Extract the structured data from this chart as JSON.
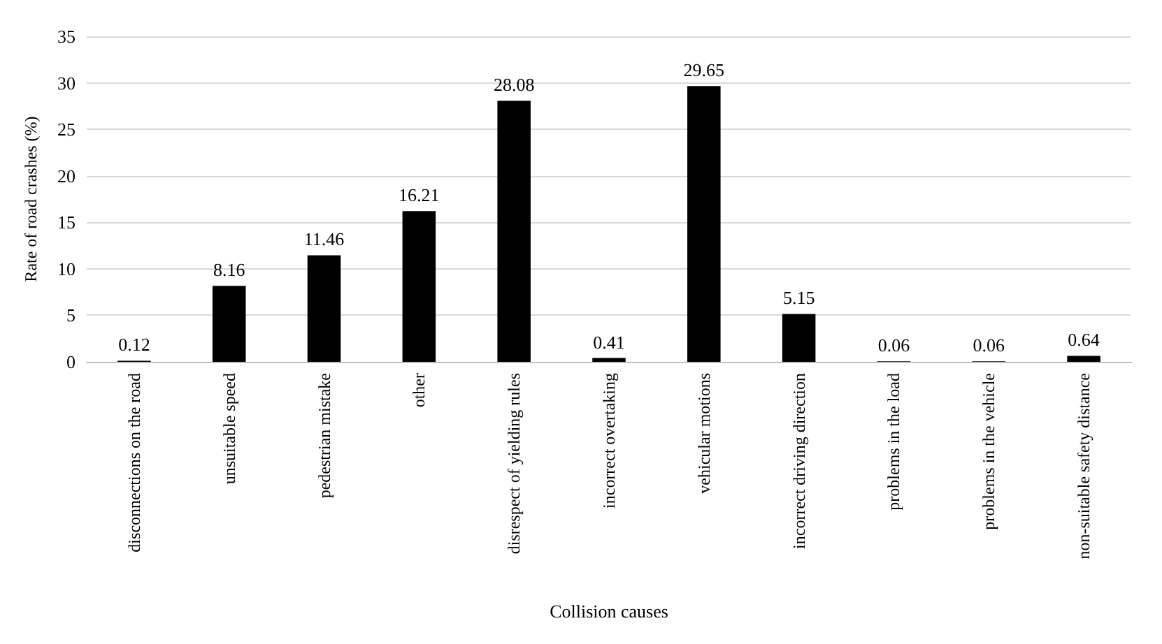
{
  "chart_data": {
    "type": "bar",
    "xlabel": "Collision causes",
    "ylabel": "Rate of road crashes (%)",
    "categories": [
      "disconnections on the road",
      "unsuitable speed",
      "pedestrian mistake",
      "other",
      "disrespect of yielding rules",
      "incorrect overtaking",
      "vehicular motions",
      "incorrect driving direction",
      "problems in the load",
      "problems in the vehicle",
      "non-suitable safety distance"
    ],
    "values": [
      0.12,
      8.16,
      11.46,
      16.21,
      28.08,
      0.41,
      29.65,
      5.15,
      0.06,
      0.06,
      0.64
    ],
    "color": "#000000",
    "ylim": [
      0,
      35
    ],
    "yticks": [
      0,
      5,
      10,
      15,
      20,
      25,
      30,
      35
    ],
    "grid": "y",
    "data_labels": true
  }
}
